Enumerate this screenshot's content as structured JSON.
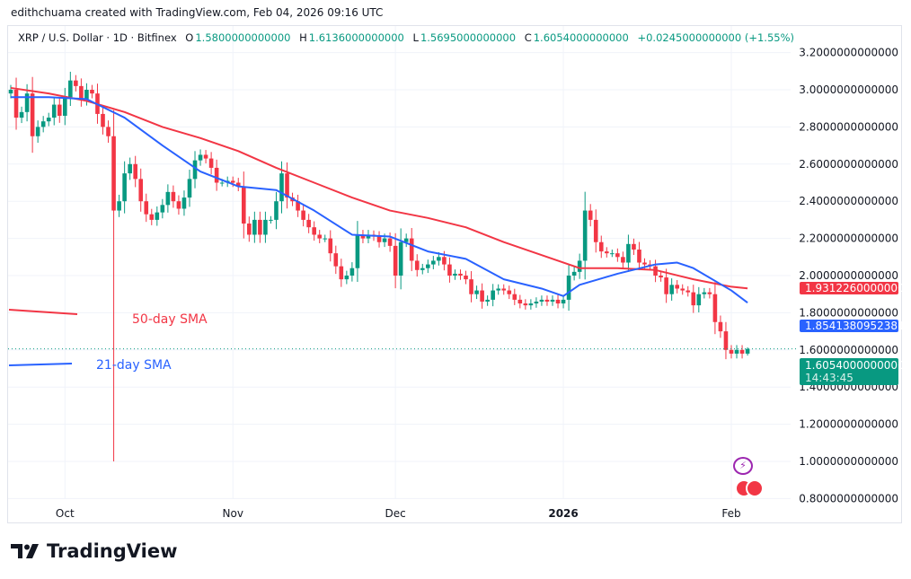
{
  "credit": "edithchuama created with TradingView.com, Feb 04, 2026 09:16 UTC",
  "legend": {
    "symbol": "XRP / U.S. Dollar · 1D · Bitfinex",
    "o_label": "O",
    "o": "1.5800000000000",
    "h_label": "H",
    "h": "1.6136000000000",
    "l_label": "L",
    "l": "1.5695000000000",
    "c_label": "C",
    "c": "1.6054000000000",
    "change": "+0.0245000000000 (+1.55%)"
  },
  "badges": {
    "sma50": "1.9312260000000",
    "sma21": "1.8541380952381",
    "price": "1.6054000000000",
    "countdown": "14:43:45"
  },
  "annotations": {
    "sma50": "50-day SMA",
    "sma21": "21-day SMA"
  },
  "brand": "TradingView",
  "colors": {
    "up": "#089981",
    "down": "#f23645",
    "sma50": "#f23645",
    "sma21": "#2962ff"
  },
  "chart_data": {
    "type": "candlestick",
    "x_range": [
      "2025-09-21",
      "2026-02-04"
    ],
    "x_tick_labels": [
      "Oct",
      "Nov",
      "Dec",
      "2026",
      "Feb"
    ],
    "x_tick_dates": [
      "2025-10-01",
      "2025-11-01",
      "2025-12-01",
      "2026-01-01",
      "2026-02-01"
    ],
    "ylim": [
      0.8,
      3.2
    ],
    "y_tick_labels": [
      "3.2000000000000",
      "3.0000000000000",
      "2.8000000000000",
      "2.6000000000000",
      "2.4000000000000",
      "2.2000000000000",
      "2.0000000000000",
      "1.8000000000000",
      "1.6000000000000",
      "1.4000000000000",
      "1.2000000000000",
      "1.0000000000000",
      "0.8000000000000"
    ],
    "y_ticks": [
      3.2,
      3.0,
      2.8,
      2.6,
      2.4,
      2.2,
      2.0,
      1.8,
      1.6,
      1.4,
      1.2,
      1.0,
      0.8
    ],
    "grid": true,
    "close": [
      3.0,
      2.85,
      2.88,
      2.98,
      2.75,
      2.8,
      2.83,
      2.85,
      2.92,
      2.86,
      2.96,
      3.05,
      3.02,
      2.95,
      3.0,
      2.98,
      2.87,
      2.8,
      2.75,
      2.35,
      2.4,
      2.55,
      2.6,
      2.52,
      2.4,
      2.33,
      2.3,
      2.34,
      2.38,
      2.45,
      2.4,
      2.36,
      2.42,
      2.52,
      2.62,
      2.65,
      2.63,
      2.58,
      2.5,
      2.5,
      2.51,
      2.5,
      2.48,
      2.28,
      2.22,
      2.3,
      2.22,
      2.3,
      2.3,
      2.4,
      2.55,
      2.42,
      2.4,
      2.35,
      2.3,
      2.26,
      2.22,
      2.2,
      2.2,
      2.12,
      2.05,
      1.98,
      2.0,
      2.04,
      2.22,
      2.2,
      2.22,
      2.21,
      2.18,
      2.2,
      2.16,
      2.0,
      2.18,
      2.2,
      2.08,
      2.03,
      2.04,
      2.06,
      2.08,
      2.1,
      2.06,
      2.0,
      2.01,
      2.0,
      1.98,
      1.9,
      1.92,
      1.86,
      1.87,
      1.92,
      1.93,
      1.92,
      1.9,
      1.87,
      1.85,
      1.84,
      1.85,
      1.86,
      1.87,
      1.86,
      1.87,
      1.85,
      1.87,
      2.0,
      2.02,
      2.08,
      2.35,
      2.3,
      2.18,
      2.13,
      2.12,
      2.12,
      2.1,
      2.07,
      2.17,
      2.14,
      2.07,
      2.06,
      2.05,
      2.0,
      1.99,
      1.9,
      1.95,
      1.93,
      1.92,
      1.91,
      1.84,
      1.9,
      1.91,
      1.9,
      1.75,
      1.7,
      1.6,
      1.58,
      1.6,
      1.58,
      1.6054
    ],
    "notable_lows": [
      {
        "date": "2025-10-10",
        "low": 1.0
      }
    ],
    "last": {
      "open": 1.58,
      "high": 1.6136,
      "low": 1.5695,
      "close": 1.6054
    },
    "series": [
      {
        "name": "50-day SMA",
        "dates": [
          "2025-09-21",
          "2025-09-28",
          "2025-10-05",
          "2025-10-12",
          "2025-10-19",
          "2025-10-26",
          "2025-11-02",
          "2025-11-09",
          "2025-11-16",
          "2025-11-23",
          "2025-11-30",
          "2025-12-07",
          "2025-12-14",
          "2025-12-21",
          "2025-12-28",
          "2026-01-04",
          "2026-01-11",
          "2026-01-18",
          "2026-01-25",
          "2026-02-01",
          "2026-02-04"
        ],
        "values": [
          3.01,
          2.98,
          2.94,
          2.88,
          2.8,
          2.74,
          2.67,
          2.58,
          2.5,
          2.42,
          2.35,
          2.31,
          2.26,
          2.18,
          2.11,
          2.04,
          2.04,
          2.03,
          1.98,
          1.94,
          1.931
        ]
      },
      {
        "name": "21-day SMA",
        "dates": [
          "2025-09-21",
          "2025-09-28",
          "2025-10-05",
          "2025-10-12",
          "2025-10-19",
          "2025-10-26",
          "2025-11-02",
          "2025-11-09",
          "2025-11-16",
          "2025-11-23",
          "2025-11-30",
          "2025-12-07",
          "2025-12-14",
          "2025-12-21",
          "2025-12-28",
          "2026-01-01",
          "2026-01-04",
          "2026-01-11",
          "2026-01-18",
          "2026-01-22",
          "2026-01-25",
          "2026-02-01",
          "2026-02-04"
        ],
        "values": [
          2.96,
          2.96,
          2.95,
          2.85,
          2.7,
          2.56,
          2.48,
          2.46,
          2.35,
          2.22,
          2.21,
          2.13,
          2.09,
          1.98,
          1.93,
          1.89,
          1.95,
          2.01,
          2.06,
          2.07,
          2.04,
          1.92,
          1.854
        ]
      }
    ]
  }
}
